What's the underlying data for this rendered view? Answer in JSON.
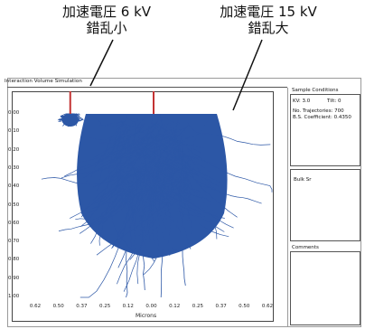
{
  "annotations": {
    "left": {
      "line1": "加速電圧 6 kV",
      "line2": "錯乱小"
    },
    "right": {
      "line1": "加速電圧 15 kV",
      "line2": "錯乱大"
    }
  },
  "window": {
    "title": "Interaction Volume Simulation"
  },
  "chart_data": {
    "type": "scatter",
    "xlabel": "Microns",
    "x_ticks": [
      "0.62",
      "0.50",
      "0.37",
      "0.25",
      "0.12",
      "0.00",
      "0.12",
      "0.25",
      "0.37",
      "0.50",
      "0.62"
    ],
    "y_ticks": [
      "0.00",
      "0.10",
      "0.20",
      "0.30",
      "0.40",
      "0.50",
      "0.60",
      "0.70",
      "0.80",
      "0.90",
      "1.00"
    ],
    "xlim": [
      -0.62,
      0.62
    ],
    "ylim": [
      0.0,
      1.0
    ],
    "series": [
      {
        "name": "",
        "beam_x": -0.43,
        "max_depth": 0.08,
        "color": "#2c57a6"
      },
      {
        "name": "",
        "beam_x": 0.0,
        "max_depth": 0.95,
        "color": "#2c57a6"
      }
    ],
    "beam_color": "#c33333"
  },
  "side_panel": {
    "sample_conditions": {
      "title": "Sample Conditions",
      "kv": "KV: 3.0",
      "tilt": "Tilt: 0",
      "trajectories": "No. Trajectories: 700",
      "bs_coeff": "B.S. Coefficient: 0.4350"
    },
    "material": "Bulk Sr",
    "comments": {
      "title": "Comments"
    }
  }
}
